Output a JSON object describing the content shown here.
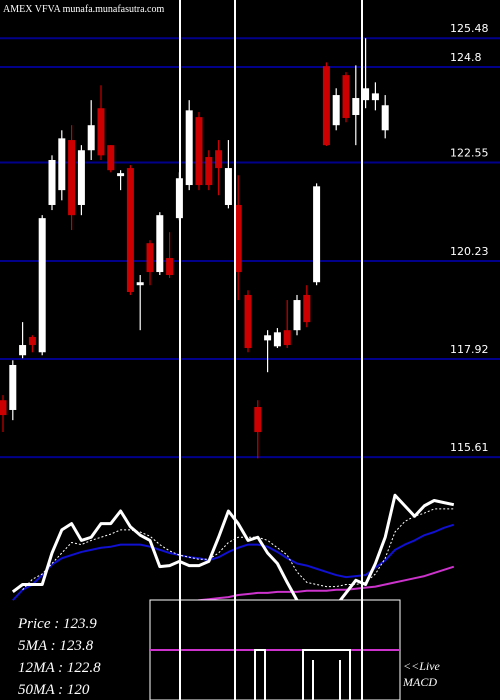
{
  "chart_data": [
    {
      "type": "candlestick",
      "title": "AMEX VFVA munafa.munafasutra.com",
      "ylim": [
        115.07,
        126.38
      ],
      "yticks": [
        125.48,
        124.8,
        122.55,
        120.23,
        117.92,
        115.61
      ],
      "grid": true,
      "grid_color": "#00008b",
      "up_color": "#ffffff",
      "down_color": "#cc0000",
      "open": [
        116.95,
        116.72,
        118.01,
        118.44,
        118.08,
        121.55,
        121.9,
        123.08,
        121.55,
        122.84,
        123.83,
        122.96,
        122.23,
        122.42,
        119.66,
        120.65,
        119.97,
        120.3,
        121.24,
        122.02,
        123.62,
        122.68,
        122.84,
        121.55,
        121.55,
        119.43,
        116.79,
        118.36,
        118.22,
        118.6,
        118.6,
        119.43,
        119.73,
        124.82,
        123.43,
        124.61,
        123.67,
        124.02,
        124.02,
        123.31
      ],
      "high": [
        117.07,
        117.89,
        118.79,
        118.48,
        121.31,
        122.72,
        123.31,
        123.43,
        122.96,
        124.02,
        124.37,
        122.96,
        122.37,
        122.49,
        119.9,
        120.72,
        121.38,
        120.91,
        122.32,
        124.02,
        123.74,
        122.84,
        123.08,
        123.08,
        122.25,
        119.54,
        116.95,
        118.6,
        118.65,
        119.31,
        119.43,
        119.66,
        122.06,
        124.91,
        124.3,
        124.68,
        124.84,
        125.48,
        124.44,
        124.14
      ],
      "low": [
        116.2,
        116.48,
        117.94,
        118.08,
        118.01,
        121.43,
        121.66,
        120.96,
        121.31,
        122.61,
        122.61,
        122.32,
        121.9,
        119.43,
        118.6,
        119.66,
        119.9,
        119.83,
        121.19,
        121.9,
        121.9,
        121.9,
        121.78,
        121.47,
        119.31,
        118.08,
        115.58,
        117.61,
        118.18,
        118.18,
        118.48,
        118.67,
        119.66,
        122.94,
        123.31,
        123.5,
        122.96,
        123.83,
        123.78,
        123.12
      ],
      "close": [
        116.6,
        117.78,
        118.25,
        118.25,
        121.24,
        122.61,
        123.12,
        121.31,
        122.84,
        123.43,
        122.72,
        122.37,
        122.3,
        119.5,
        119.73,
        119.97,
        121.31,
        119.9,
        122.18,
        123.78,
        122.02,
        122.02,
        122.42,
        122.42,
        119.97,
        118.18,
        116.2,
        118.48,
        118.55,
        118.25,
        119.31,
        118.79,
        121.99,
        122.96,
        124.14,
        123.6,
        124.07,
        124.3,
        124.18,
        123.9
      ],
      "stats": [
        "Price   : 123.9",
        "5MA   : 123.8",
        "12MA : 122.8",
        "50MA : 120"
      ]
    },
    {
      "type": "line",
      "ylim": [
        -100,
        100
      ],
      "live_label": [
        "<<Live",
        "MACD"
      ],
      "series": [
        {
          "color": "#cc33cc",
          "width": 2,
          "dash": false,
          "values": [
            null,
            null,
            null,
            null,
            null,
            null,
            null,
            null,
            null,
            null,
            null,
            null,
            null,
            null,
            null,
            -14,
            -12,
            -10,
            -8,
            -7,
            -5,
            -4,
            -3,
            -2,
            0,
            1,
            2,
            2,
            3,
            3,
            3,
            4,
            4,
            4,
            5,
            5,
            6,
            7,
            8,
            10,
            12,
            14,
            16,
            18,
            21,
            24,
            27
          ]
        },
        {
          "color": "#1010d0",
          "width": 2,
          "dash": false,
          "values": [
            null,
            -5,
            5,
            10,
            19,
            29,
            35,
            38,
            41,
            43,
            45,
            46,
            48,
            48,
            48,
            46,
            43,
            40,
            38,
            36,
            35,
            33,
            36,
            41,
            45,
            48,
            48,
            46,
            41,
            35,
            30,
            28,
            25,
            22,
            19,
            17,
            18,
            19,
            26,
            33,
            43,
            48,
            52,
            57,
            60,
            64,
            67
          ]
        },
        {
          "color": "#ffffff",
          "width": 1,
          "dash": true,
          "values": [
            null,
            null,
            5,
            15,
            20,
            30,
            40,
            50,
            48,
            52,
            55,
            58,
            62,
            62,
            60,
            56,
            48,
            42,
            38,
            36,
            34,
            34,
            40,
            50,
            55,
            55,
            55,
            52,
            45,
            38,
            22,
            12,
            10,
            8,
            8,
            10,
            10,
            12,
            20,
            35,
            60,
            70,
            75,
            78,
            82,
            82,
            82
          ]
        },
        {
          "color": "#ffffff",
          "width": 3,
          "dash": false,
          "values": [
            null,
            3,
            10,
            10,
            10,
            40,
            62,
            68,
            52,
            55,
            68,
            68,
            80,
            65,
            57,
            52,
            27,
            28,
            32,
            28,
            28,
            32,
            55,
            80,
            68,
            52,
            55,
            40,
            30,
            12,
            -5,
            -20,
            -25,
            -20,
            -10,
            2,
            14,
            10,
            30,
            55,
            95,
            85,
            75,
            85,
            90,
            88,
            86
          ]
        }
      ]
    }
  ]
}
